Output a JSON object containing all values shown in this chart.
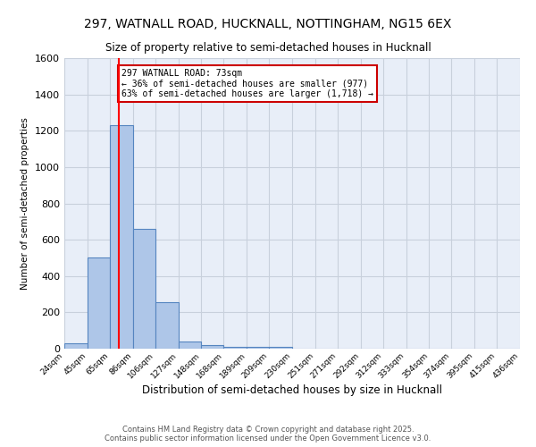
{
  "title1": "297, WATNALL ROAD, HUCKNALL, NOTTINGHAM, NG15 6EX",
  "title2": "Size of property relative to semi-detached houses in Hucknall",
  "xlabel": "Distribution of semi-detached houses by size in Hucknall",
  "ylabel": "Number of semi-detached properties",
  "categories": [
    "24sqm",
    "45sqm",
    "65sqm",
    "86sqm",
    "106sqm",
    "127sqm",
    "148sqm",
    "168sqm",
    "189sqm",
    "209sqm",
    "230sqm",
    "251sqm",
    "271sqm",
    "292sqm",
    "312sqm",
    "333sqm",
    "354sqm",
    "374sqm",
    "395sqm",
    "415sqm",
    "436sqm"
  ],
  "bar_values": [
    30,
    500,
    1230,
    660,
    255,
    40,
    20,
    12,
    10,
    10,
    0,
    0,
    0,
    0,
    0,
    0,
    0,
    0,
    0,
    0,
    0
  ],
  "bar_color": "#aec6e8",
  "bar_edge_color": "#5585c0",
  "background_color": "#e8eef8",
  "grid_color": "#c8d0dc",
  "red_line_x": 73,
  "bin_edges": [
    24,
    45,
    65,
    86,
    106,
    127,
    148,
    168,
    189,
    209,
    230,
    251,
    271,
    292,
    312,
    333,
    354,
    374,
    395,
    415,
    436
  ],
  "ylim": [
    0,
    1600
  ],
  "yticks": [
    0,
    200,
    400,
    600,
    800,
    1000,
    1200,
    1400,
    1600
  ],
  "annotation_title": "297 WATNALL ROAD: 73sqm",
  "annotation_line1": "← 36% of semi-detached houses are smaller (977)",
  "annotation_line2": "63% of semi-detached houses are larger (1,718) →",
  "annotation_box_color": "#ffffff",
  "annotation_border_color": "#cc0000",
  "footer1": "Contains HM Land Registry data © Crown copyright and database right 2025.",
  "footer2": "Contains public sector information licensed under the Open Government Licence v3.0.",
  "title1_fontsize": 10,
  "title2_fontsize": 8.5
}
